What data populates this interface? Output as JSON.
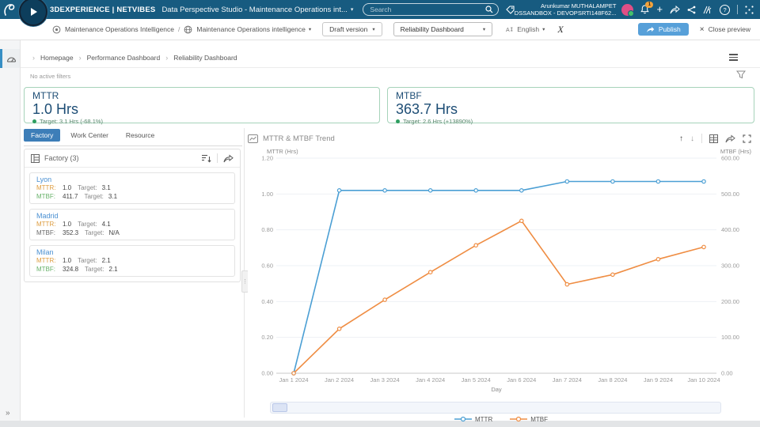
{
  "topbar": {
    "brand": "3DEXPERIENCE | NETVIBES",
    "app_title": "Data Perspective Studio - Maintenance Operations int...",
    "search_placeholder": "Search",
    "user_name": "Arunkumar MUTHALAMPET",
    "user_tenant": "DSSANDBOX - DEVOPSRTI148F62...",
    "notification_count": "1"
  },
  "toolbar": {
    "app_crumb": "Maintenance Operations Intelligence",
    "crumb_separator": "/",
    "model_crumb": "Maintenance Operations intelligence",
    "version_button": "Draft version",
    "dashboard_select": "Reliability Dashboard",
    "language": "English",
    "formula_label": "X",
    "publish_label": "Publish",
    "close_preview_label": "Close preview"
  },
  "breadcrumb": {
    "items": [
      "Homepage",
      "Performance Dashboard",
      "Reliability Dashboard"
    ]
  },
  "filters": {
    "status": "No active filters"
  },
  "kpis": [
    {
      "title": "MTTR",
      "value": "1.0 Hrs",
      "target": "Target: 3.1 Hrs (-68.1%)",
      "status_color": "#2d9e5f"
    },
    {
      "title": "MTBF",
      "value": "363.7 Hrs",
      "target": "Target: 2.6 Hrs (+13890%)",
      "status_color": "#2d9e5f"
    }
  ],
  "explorer": {
    "tabs": [
      "Factory",
      "Work Center",
      "Resource"
    ],
    "active_tab": "Factory",
    "panel_title": "Factory (3)",
    "items": [
      {
        "name": "Lyon",
        "metrics": [
          {
            "label": "MTTR:",
            "value": "1.0",
            "target_label": "Target:",
            "target": "3.1",
            "label_color": "#dd9b3d"
          },
          {
            "label": "MTBF:",
            "value": "411.7",
            "target_label": "Target:",
            "target": "3.1",
            "label_color": "#68b26a"
          }
        ]
      },
      {
        "name": "Madrid",
        "metrics": [
          {
            "label": "MTTR:",
            "value": "1.0",
            "target_label": "Target:",
            "target": "4.1",
            "label_color": "#dd9b3d"
          },
          {
            "label": "MTBF:",
            "value": "352.3",
            "target_label": "Target:",
            "target": "N/A",
            "label_color": "#6b6b6b"
          }
        ]
      },
      {
        "name": "Milan",
        "metrics": [
          {
            "label": "MTTR:",
            "value": "1.0",
            "target_label": "Target:",
            "target": "2.1",
            "label_color": "#dd9b3d"
          },
          {
            "label": "MTBF:",
            "value": "324.8",
            "target_label": "Target:",
            "target": "2.1",
            "label_color": "#68b26a"
          }
        ]
      }
    ]
  },
  "chart": {
    "title": "MTTR & MTBF Trend"
  },
  "chart_data": {
    "type": "line",
    "title": "MTTR & MTBF Trend",
    "x": [
      "Jan 1 2024",
      "Jan 2 2024",
      "Jan 3 2024",
      "Jan 4 2024",
      "Jan 5 2024",
      "Jan 6 2024",
      "Jan 7 2024",
      "Jan 8 2024",
      "Jan 9 2024",
      "Jan 10 2024"
    ],
    "xlabel": "Day",
    "y_left": {
      "label": "MTTR (Hrs)",
      "min": 0,
      "max": 1.2,
      "ticks": [
        "0.00",
        "0.20",
        "0.40",
        "0.60",
        "0.80",
        "1.00",
        "1.20"
      ]
    },
    "y_right": {
      "label": "MTBF (Hrs)",
      "min": 0,
      "max": 600,
      "ticks": [
        "0.00",
        "100.00",
        "200.00",
        "300.00",
        "400.00",
        "500.00",
        "600.00"
      ]
    },
    "series": [
      {
        "name": "MTTR",
        "axis": "left",
        "color": "#4b9fd4",
        "values": [
          0,
          1.02,
          1.02,
          1.02,
          1.02,
          1.02,
          1.07,
          1.07,
          1.07,
          1.07
        ]
      },
      {
        "name": "MTBF",
        "axis": "right",
        "color": "#ef8d43",
        "values": [
          0,
          124,
          205,
          282,
          357,
          425,
          248,
          275,
          318,
          352
        ]
      }
    ],
    "grid": true,
    "legend_position": "bottom"
  }
}
